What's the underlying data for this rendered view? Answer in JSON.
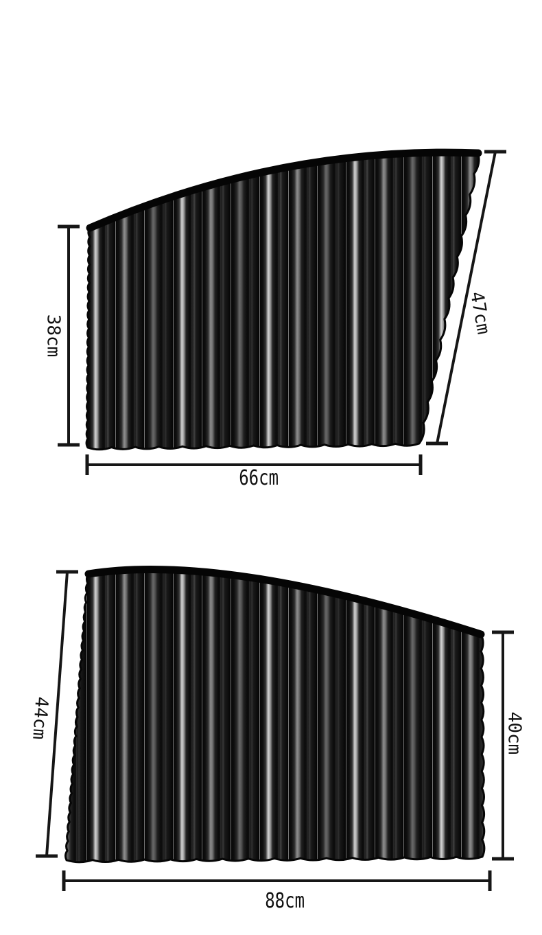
{
  "diagram": {
    "description": "Dimension diagram of two pleated magnetic car window sunshade curtains",
    "units": "cm",
    "curtains": [
      {
        "name": "front side window curtain",
        "left_height_label": "38cm",
        "right_slant_label": "47cm",
        "bottom_width_label": "66cm"
      },
      {
        "name": "rear side window curtain",
        "left_slant_label": "44cm",
        "right_height_label": "40cm",
        "bottom_width_label": "88cm"
      }
    ]
  },
  "colors": {
    "background": "#ffffff",
    "dimension_line": "#161616",
    "label_text": "#111111",
    "curtain_black": "#060606",
    "pleat_highlight_bright": "#d4d4d4",
    "pleat_highlight_medium": "#8e8e8e",
    "pleat_highlight_dim": "#696969"
  }
}
